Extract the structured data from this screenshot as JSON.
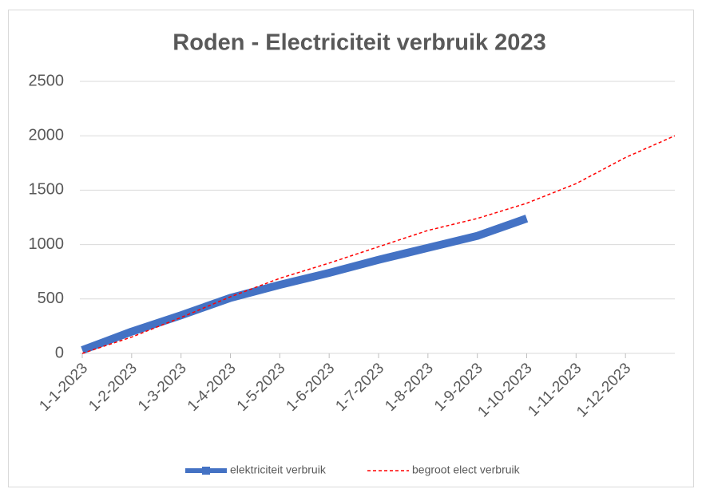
{
  "chart_data": {
    "type": "line",
    "title": "Roden -  Electriciteit verbruik 2023",
    "categories": [
      "1-1-2023",
      "1-2-2023",
      "1-3-2023",
      "1-4-2023",
      "1-5-2023",
      "1-6-2023",
      "1-7-2023",
      "1-8-2023",
      "1-9-2023",
      "1-10-2023",
      "1-11-2023",
      "1-12-2023",
      null
    ],
    "series": [
      {
        "name": "elektriciteit verbruik",
        "color": "#4472c4",
        "values": [
          30,
          200,
          350,
          510,
          630,
          740,
          860,
          970,
          1080,
          1240,
          null,
          null,
          null
        ]
      },
      {
        "name": "begroot elect verbruik",
        "color": "#ff0000",
        "values": [
          0,
          150,
          330,
          520,
          690,
          830,
          980,
          1130,
          1240,
          1380,
          1560,
          1800,
          2000
        ]
      }
    ],
    "ylim": [
      0,
      2500
    ],
    "yticks": [
      0,
      500,
      1000,
      1500,
      2000,
      2500
    ],
    "grid": true,
    "legend": "bottom"
  }
}
